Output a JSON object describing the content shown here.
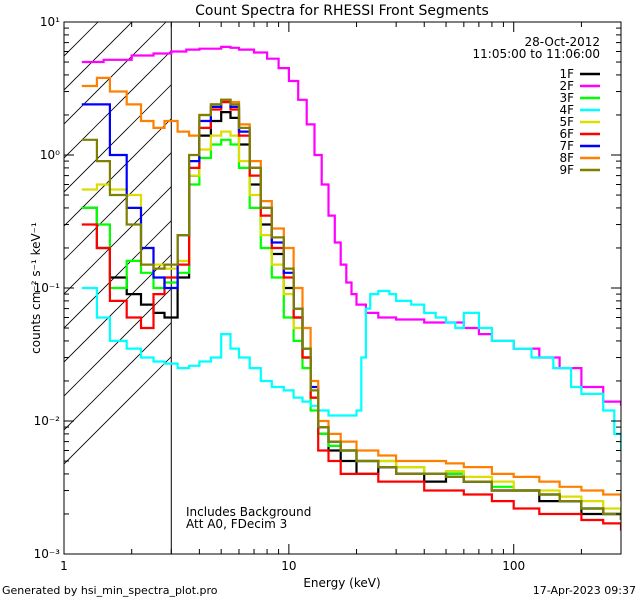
{
  "chart_data": {
    "type": "line",
    "title": "Count Spectra for RHESSI Front Segments",
    "xlabel": "Energy (keV)",
    "ylabel": "counts cm⁻² s⁻¹ keV⁻¹",
    "x_scale": "log",
    "y_scale": "log",
    "xlim": [
      1,
      300
    ],
    "ylim": [
      0.001,
      10
    ],
    "x_ticks": [
      {
        "value": 1,
        "label": "1"
      },
      {
        "value": 10,
        "label": "10"
      },
      {
        "value": 100,
        "label": "100"
      }
    ],
    "y_ticks": [
      {
        "value": 0.001,
        "label": "10⁻³"
      },
      {
        "value": 0.01,
        "label": "10⁻²"
      },
      {
        "value": 0.1,
        "label": "10⁻¹"
      },
      {
        "value": 1,
        "label": "10⁰"
      },
      {
        "value": 10,
        "label": "10¹"
      }
    ],
    "legend_position": "top-right",
    "date": "28-Oct-2012",
    "time_range": "11:05:00 to 11:06:00",
    "annotation_lines": [
      "Includes Background",
      "Att A0, FDecim 3"
    ],
    "excluded_region_max_kev": 3,
    "footer_left": "Generated by hsi_min_spectra_plot.pro",
    "footer_right": "17-Apr-2023 09:37",
    "grid": false,
    "series": [
      {
        "name": "1F",
        "color": "#000000",
        "x": [
          1.2,
          1.4,
          1.6,
          1.9,
          2.2,
          2.5,
          2.8,
          3.2,
          3.6,
          4.0,
          4.5,
          5.0,
          5.5,
          6.0,
          6.7,
          7.5,
          8.4,
          9.5,
          10.5,
          11.5,
          12.5,
          13.5,
          15,
          17,
          20,
          25,
          30,
          40,
          50,
          60,
          80,
          100,
          130,
          160,
          200,
          250,
          300
        ],
        "y": [
          0.4,
          0.2,
          0.12,
          0.09,
          0.075,
          0.065,
          0.06,
          0.12,
          0.7,
          1.4,
          1.8,
          2.1,
          1.9,
          1.2,
          0.6,
          0.3,
          0.18,
          0.1,
          0.06,
          0.03,
          0.015,
          0.008,
          0.006,
          0.005,
          0.004,
          0.0045,
          0.004,
          0.0035,
          0.004,
          0.0035,
          0.003,
          0.003,
          0.0025,
          0.0025,
          0.002,
          0.002,
          0.0018
        ]
      },
      {
        "name": "2F",
        "color": "#ff00ff",
        "x": [
          1.2,
          1.5,
          2.0,
          2.5,
          3.0,
          3.5,
          4.0,
          5.0,
          5.5,
          6.0,
          7.0,
          8.0,
          9.0,
          10.0,
          11.0,
          12.0,
          13.0,
          14.0,
          15.0,
          16.0,
          17.0,
          18.0,
          19.0,
          20.0,
          22.0,
          25.0,
          30.0,
          40.0,
          50.0,
          60.0,
          70.0,
          80.0,
          100.0,
          130.0,
          160.0,
          200.0,
          250.0,
          300.0
        ],
        "y": [
          5.0,
          5.2,
          5.6,
          5.8,
          6.0,
          6.2,
          6.3,
          6.5,
          6.4,
          6.2,
          5.9,
          5.3,
          4.5,
          3.6,
          2.6,
          1.7,
          1.0,
          0.6,
          0.35,
          0.22,
          0.15,
          0.11,
          0.09,
          0.075,
          0.065,
          0.06,
          0.058,
          0.055,
          0.055,
          0.05,
          0.045,
          0.04,
          0.035,
          0.03,
          0.025,
          0.018,
          0.014,
          0.013
        ]
      },
      {
        "name": "3F",
        "color": "#00ff00",
        "x": [
          1.2,
          1.4,
          1.6,
          1.9,
          2.2,
          2.5,
          2.8,
          3.2,
          3.6,
          4.0,
          4.5,
          5.0,
          5.5,
          6.0,
          6.7,
          7.5,
          8.4,
          9.5,
          10.5,
          11.5,
          12.5,
          13.5,
          15,
          17,
          20,
          25,
          30,
          40,
          50,
          60,
          80,
          100,
          130,
          160,
          200,
          250,
          300
        ],
        "y": [
          0.4,
          0.3,
          0.1,
          0.16,
          0.13,
          0.1,
          0.11,
          0.13,
          0.6,
          0.95,
          1.2,
          1.3,
          1.2,
          0.8,
          0.4,
          0.2,
          0.12,
          0.06,
          0.04,
          0.025,
          0.012,
          0.008,
          0.0065,
          0.006,
          0.005,
          0.005,
          0.0045,
          0.004,
          0.004,
          0.0035,
          0.0032,
          0.003,
          0.0028,
          0.0025,
          0.0022,
          0.002,
          0.0018
        ]
      },
      {
        "name": "4F",
        "color": "#00ffff",
        "x": [
          1.2,
          1.4,
          1.6,
          1.9,
          2.2,
          2.5,
          2.8,
          3.2,
          3.6,
          4.0,
          4.5,
          5.0,
          5.5,
          6.0,
          6.7,
          7.5,
          8.4,
          9.5,
          10.5,
          11.5,
          12.5,
          13.5,
          15,
          17,
          20,
          21,
          22,
          23,
          25,
          28,
          30,
          35,
          40,
          45,
          50,
          55,
          60,
          70,
          80,
          100,
          120,
          150,
          180,
          200,
          250,
          280,
          300
        ],
        "y": [
          0.1,
          0.06,
          0.04,
          0.035,
          0.03,
          0.028,
          0.027,
          0.025,
          0.026,
          0.028,
          0.03,
          0.045,
          0.035,
          0.03,
          0.025,
          0.02,
          0.018,
          0.017,
          0.015,
          0.014,
          0.013,
          0.012,
          0.011,
          0.011,
          0.012,
          0.03,
          0.07,
          0.09,
          0.095,
          0.09,
          0.08,
          0.075,
          0.065,
          0.06,
          0.055,
          0.05,
          0.065,
          0.05,
          0.04,
          0.035,
          0.03,
          0.025,
          0.018,
          0.016,
          0.012,
          0.008,
          0.006
        ]
      },
      {
        "name": "5F",
        "color": "#dddd00",
        "x": [
          1.2,
          1.4,
          1.6,
          1.9,
          2.2,
          2.5,
          2.8,
          3.2,
          3.6,
          4.0,
          4.5,
          5.0,
          5.5,
          6.0,
          6.7,
          7.5,
          8.4,
          9.5,
          10.5,
          11.5,
          12.5,
          13.5,
          15,
          17,
          20,
          25,
          30,
          40,
          50,
          60,
          80,
          100,
          130,
          160,
          200,
          250,
          300
        ],
        "y": [
          0.55,
          0.6,
          0.55,
          0.5,
          0.2,
          0.15,
          0.14,
          0.16,
          0.7,
          1.1,
          1.4,
          1.5,
          1.4,
          0.9,
          0.5,
          0.25,
          0.15,
          0.09,
          0.05,
          0.03,
          0.015,
          0.009,
          0.007,
          0.006,
          0.005,
          0.005,
          0.0045,
          0.004,
          0.0042,
          0.0038,
          0.0035,
          0.003,
          0.003,
          0.0027,
          0.0025,
          0.0022,
          0.002
        ]
      },
      {
        "name": "6F",
        "color": "#ff0000",
        "x": [
          1.2,
          1.4,
          1.6,
          1.9,
          2.2,
          2.5,
          2.8,
          3.2,
          3.6,
          4.0,
          4.5,
          5.0,
          5.5,
          6.0,
          6.7,
          7.5,
          8.4,
          9.5,
          10.5,
          11.5,
          12.5,
          13.5,
          15,
          17,
          20,
          25,
          30,
          40,
          50,
          60,
          80,
          100,
          130,
          160,
          200,
          250,
          300
        ],
        "y": [
          0.3,
          0.2,
          0.08,
          0.06,
          0.05,
          0.09,
          0.12,
          0.15,
          0.8,
          1.6,
          2.2,
          2.5,
          2.2,
          1.4,
          0.7,
          0.35,
          0.2,
          0.12,
          0.06,
          0.03,
          0.015,
          0.006,
          0.005,
          0.004,
          0.004,
          0.0035,
          0.0035,
          0.003,
          0.003,
          0.0028,
          0.0025,
          0.0022,
          0.002,
          0.002,
          0.0018,
          0.0017,
          0.0015
        ]
      },
      {
        "name": "7F",
        "color": "#0000ff",
        "x": [
          1.2,
          1.4,
          1.6,
          1.9,
          2.2,
          2.5,
          2.8,
          3.2,
          3.6,
          4.0,
          4.5,
          5.0,
          5.5,
          6.0,
          6.7,
          7.5,
          8.4,
          9.5,
          10.5,
          11.5,
          12.5,
          13.5,
          15,
          17,
          20,
          25,
          30,
          40,
          50,
          60,
          80,
          100,
          130,
          160,
          200,
          250,
          300
        ],
        "y": [
          2.4,
          2.4,
          1.0,
          0.4,
          0.2,
          0.12,
          0.1,
          0.25,
          0.9,
          1.8,
          2.3,
          2.6,
          2.3,
          1.5,
          0.8,
          0.4,
          0.22,
          0.13,
          0.07,
          0.035,
          0.018,
          0.009,
          0.007,
          0.006,
          0.005,
          0.0045,
          0.004,
          0.004,
          0.0038,
          0.0035,
          0.003,
          0.003,
          0.0028,
          0.0025,
          0.0022,
          0.002,
          0.0018
        ]
      },
      {
        "name": "8F",
        "color": "#ff8000",
        "x": [
          1.2,
          1.4,
          1.6,
          1.9,
          2.2,
          2.5,
          2.8,
          3.2,
          3.6,
          4.0,
          4.5,
          5.0,
          5.5,
          6.0,
          6.7,
          7.5,
          8.4,
          9.5,
          10.5,
          11.5,
          12.5,
          13.5,
          15,
          17,
          20,
          25,
          30,
          40,
          50,
          60,
          80,
          100,
          130,
          160,
          200,
          250,
          300
        ],
        "y": [
          3.3,
          3.8,
          3.0,
          2.4,
          1.8,
          1.6,
          1.8,
          1.5,
          1.4,
          2.0,
          2.4,
          2.6,
          2.5,
          1.7,
          0.9,
          0.45,
          0.28,
          0.2,
          0.1,
          0.05,
          0.02,
          0.01,
          0.008,
          0.007,
          0.006,
          0.0055,
          0.005,
          0.005,
          0.0048,
          0.0045,
          0.004,
          0.0038,
          0.0035,
          0.0032,
          0.003,
          0.0028,
          0.0025
        ]
      },
      {
        "name": "9F",
        "color": "#808000",
        "x": [
          1.2,
          1.4,
          1.6,
          1.9,
          2.2,
          2.5,
          2.8,
          3.2,
          3.6,
          4.0,
          4.5,
          5.0,
          5.5,
          6.0,
          6.7,
          7.5,
          8.4,
          9.5,
          10.5,
          11.5,
          12.5,
          13.5,
          15,
          17,
          20,
          25,
          30,
          40,
          50,
          60,
          80,
          100,
          130,
          160,
          200,
          250,
          300
        ],
        "y": [
          1.3,
          0.9,
          0.5,
          0.3,
          0.15,
          0.14,
          0.15,
          0.25,
          1.0,
          2.0,
          2.4,
          2.6,
          2.4,
          1.6,
          0.8,
          0.4,
          0.24,
          0.14,
          0.07,
          0.035,
          0.017,
          0.009,
          0.007,
          0.006,
          0.005,
          0.0045,
          0.004,
          0.004,
          0.0038,
          0.0035,
          0.003,
          0.003,
          0.0028,
          0.0025,
          0.0022,
          0.002,
          0.0018
        ]
      }
    ]
  }
}
